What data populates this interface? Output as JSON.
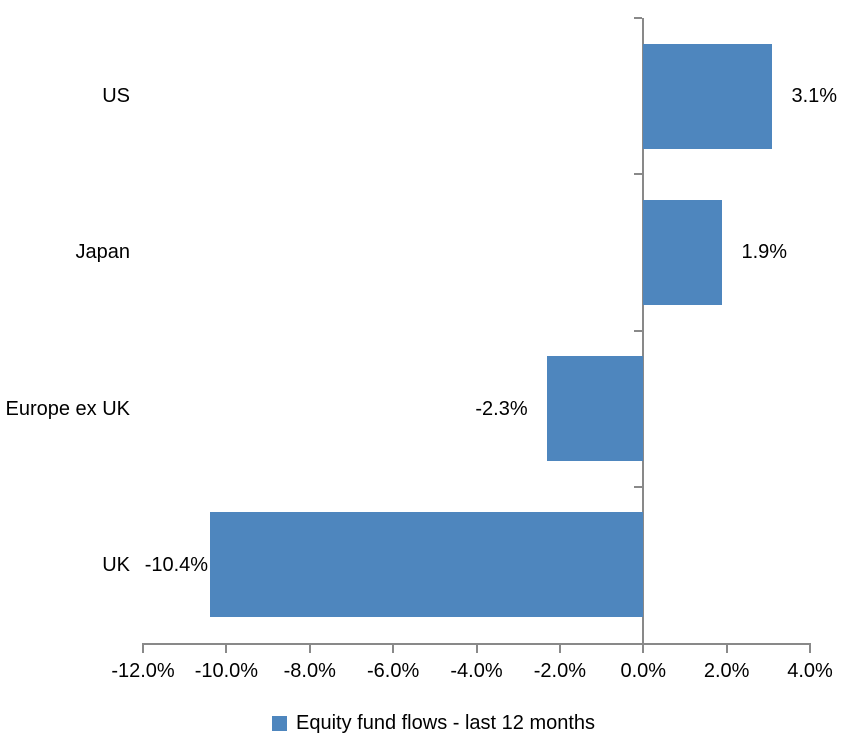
{
  "chart_data": {
    "type": "bar",
    "orientation": "horizontal",
    "title": "",
    "categories": [
      "US",
      "Japan",
      "Europe ex UK",
      "UK"
    ],
    "series": [
      {
        "name": "Equity fund flows - last 12 months",
        "values": [
          3.1,
          1.9,
          -2.3,
          -10.4
        ],
        "data_labels": [
          "3.1%",
          "1.9%",
          "-2.3%",
          "-10.4%"
        ]
      }
    ],
    "xlim": [
      -12,
      4
    ],
    "x_tick_values": [
      -12,
      -10,
      -8,
      -6,
      -4,
      -2,
      0,
      2,
      4
    ],
    "x_tick_labels": [
      "-12.0%",
      "-10.0%",
      "-8.0%",
      "-6.0%",
      "-4.0%",
      "-2.0%",
      "0.0%",
      "2.0%",
      "4.0%"
    ],
    "grid": false,
    "legend_position": "bottom",
    "bar_color": "#4E86BE",
    "axis_color": "#898989",
    "text_color": "#000000",
    "background_color": "#FFFFFF"
  },
  "legend": {
    "items": [
      {
        "label": "Equity fund flows - last 12 months",
        "swatch_color": "#4E86BE"
      }
    ]
  }
}
